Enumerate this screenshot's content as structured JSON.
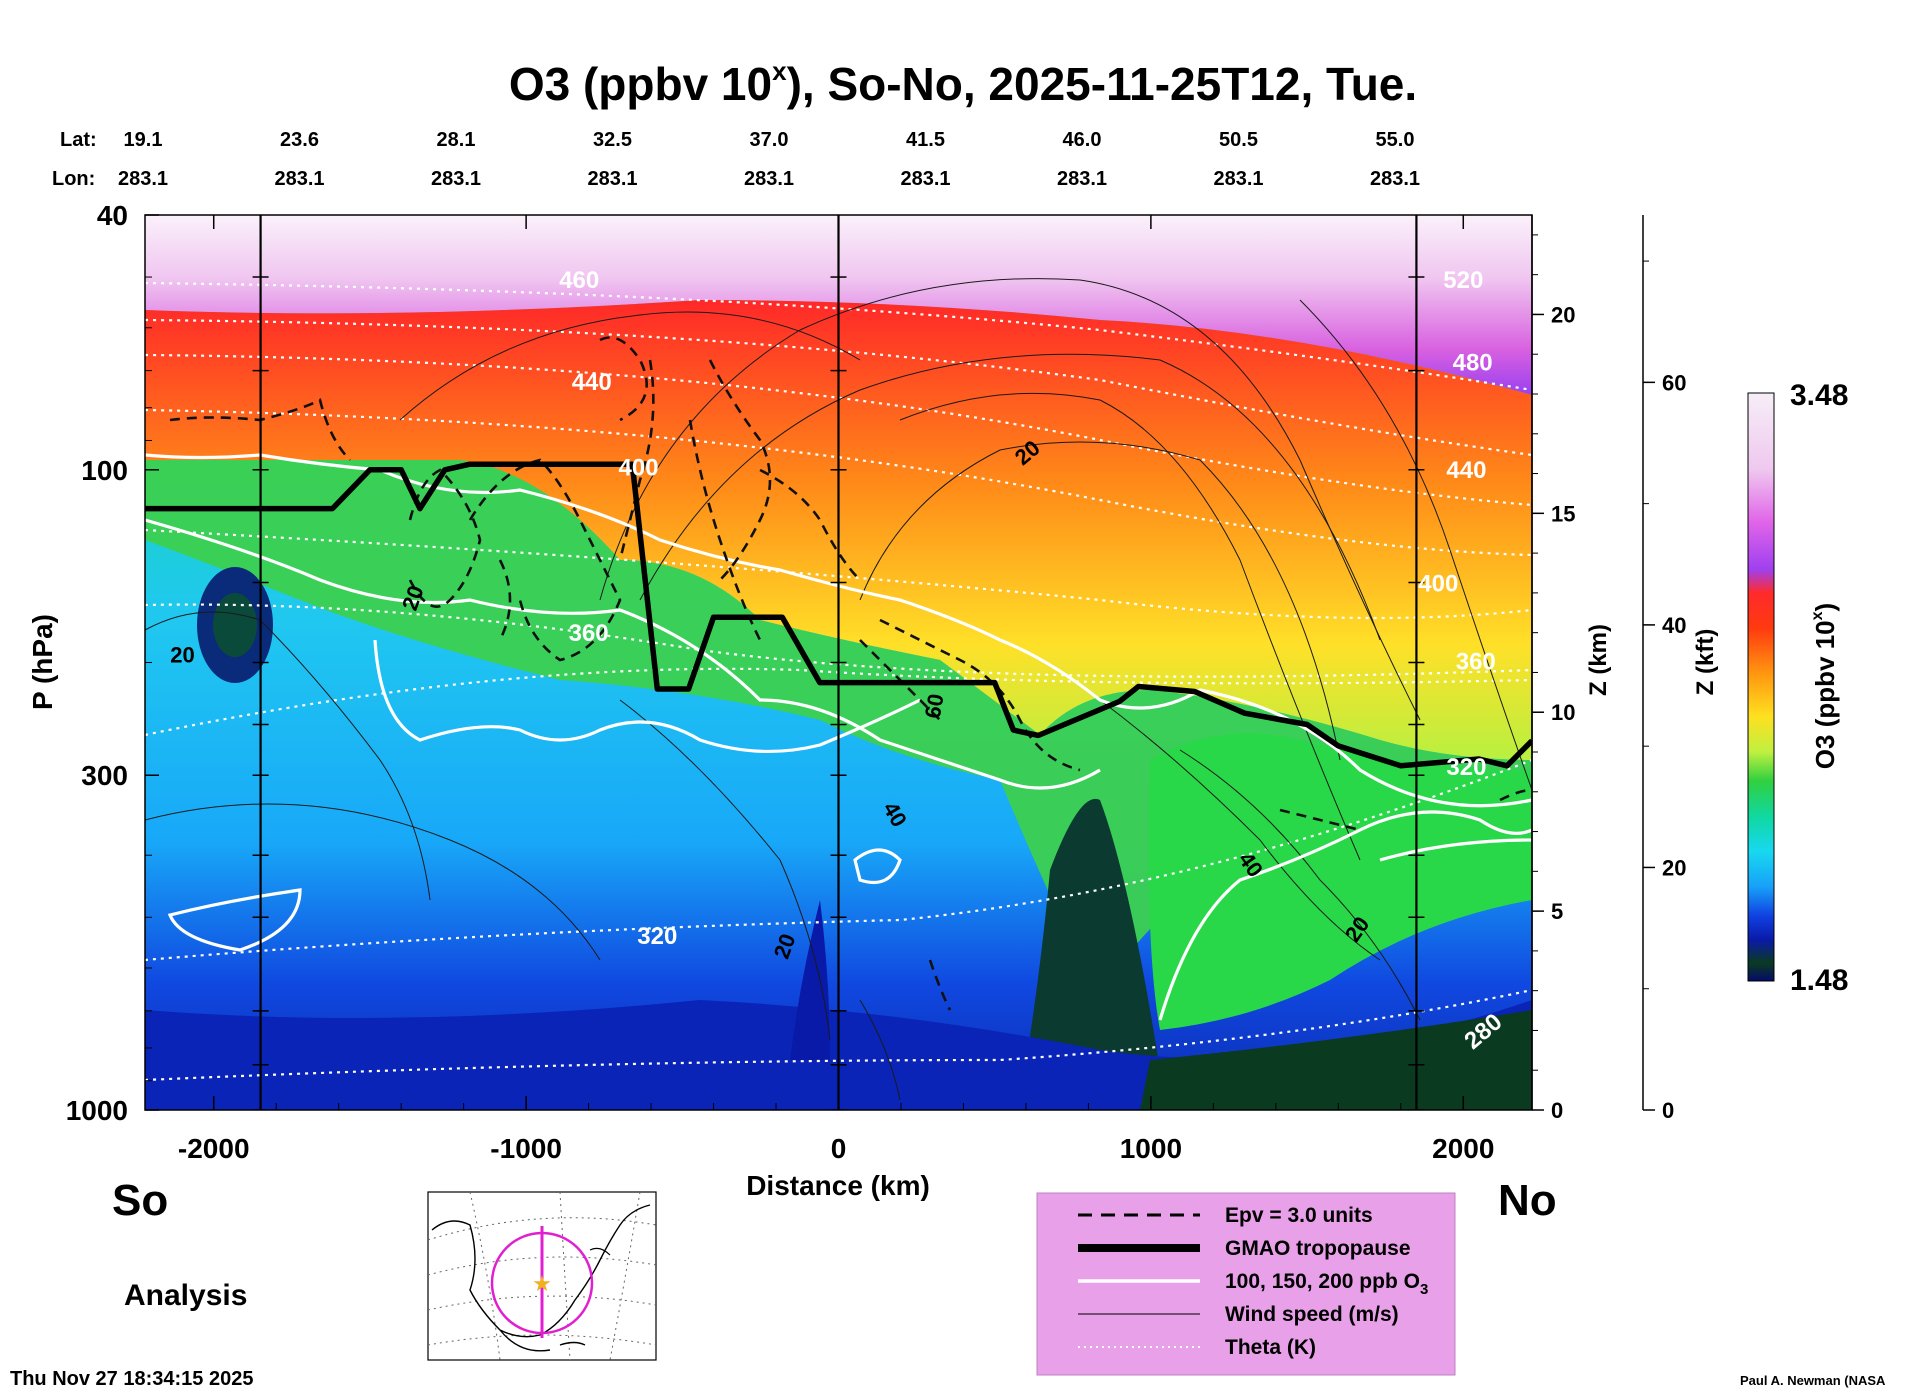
{
  "chart_data": {
    "type": "contour-cross-section",
    "title_main": "O3 (ppbv 10",
    "title_sup": "x",
    "title_rest": "), So-No, 2025-11-25T12, Tue.",
    "lat_label": "Lat:",
    "lon_label": "Lon:",
    "lat_ticks": [
      "19.1",
      "23.6",
      "28.1",
      "32.5",
      "37.0",
      "41.5",
      "46.0",
      "50.5",
      "55.0"
    ],
    "lon_ticks": [
      "283.1",
      "283.1",
      "283.1",
      "283.1",
      "283.1",
      "283.1",
      "283.1",
      "283.1",
      "283.1"
    ],
    "xlabel": "Distance (km)",
    "x_range": [
      -2220,
      2220
    ],
    "x_ticks": [
      -2000,
      -1000,
      0,
      1000,
      2000
    ],
    "x_tick_labels": [
      "-2000",
      "-1000",
      "0",
      "1000",
      "2000"
    ],
    "ylabel": "P (hPa)",
    "y_range": [
      1000,
      40
    ],
    "y_scale": "log",
    "y_tick_labels": [
      "40",
      "100",
      "300",
      "1000"
    ],
    "z_km_label": "Z (km)",
    "z_km_ticks": [
      "0",
      "5",
      "10",
      "15",
      "20"
    ],
    "z_kft_label": "Z (kft)",
    "z_kft_ticks": [
      "0",
      "20",
      "40",
      "60"
    ],
    "left_end_label": "So",
    "right_end_label": "No",
    "analysis_label": "Analysis",
    "colorbar": {
      "label_main": "O3 (ppbv 10",
      "label_sup": "x",
      "label_rest": ")",
      "max": "3.48",
      "min": "1.48"
    },
    "vertical_markers_km": [
      -1850,
      0,
      1850
    ],
    "tropopause": {
      "x": [
        -2220,
        -1620,
        -1500,
        -1400,
        -1340,
        -1260,
        -1180,
        -1000,
        -660,
        -580,
        -480,
        -400,
        -180,
        -60,
        500,
        560,
        640,
        900,
        960,
        1140,
        1300,
        1500,
        1600,
        1800,
        2050,
        2140,
        2220
      ],
      "p": [
        115,
        115,
        100,
        100,
        115,
        100,
        98,
        98,
        98,
        220,
        220,
        170,
        170,
        215,
        215,
        255,
        260,
        230,
        218,
        222,
        240,
        250,
        270,
        290,
        283,
        290,
        265
      ]
    },
    "theta_labels": [
      {
        "text": "460",
        "x": -830,
        "p": 52
      },
      {
        "text": "440",
        "x": -790,
        "p": 75
      },
      {
        "text": "400",
        "x": -640,
        "p": 102
      },
      {
        "text": "360",
        "x": -800,
        "p": 185
      },
      {
        "text": "320",
        "x": -580,
        "p": 550
      },
      {
        "text": "520",
        "x": 2000,
        "p": 52
      },
      {
        "text": "480",
        "x": 2030,
        "p": 70
      },
      {
        "text": "440",
        "x": 2010,
        "p": 103
      },
      {
        "text": "400",
        "x": 1920,
        "p": 155
      },
      {
        "text": "360",
        "x": 2040,
        "p": 205
      },
      {
        "text": "320",
        "x": 2010,
        "p": 300
      },
      {
        "text": "280",
        "x": 2080,
        "p": 770
      }
    ],
    "wind_labels": [
      {
        "text": "20",
        "x": -2100,
        "p": 200,
        "rot": 0
      },
      {
        "text": "20",
        "x": -1340,
        "p": 160,
        "rot": -70
      },
      {
        "text": "20",
        "x": 620,
        "p": 96,
        "rot": -40
      },
      {
        "text": "60",
        "x": 330,
        "p": 235,
        "rot": -80
      },
      {
        "text": "40",
        "x": 160,
        "p": 350,
        "rot": 60
      },
      {
        "text": "20",
        "x": -150,
        "p": 560,
        "rot": -70
      },
      {
        "text": "40",
        "x": 1300,
        "p": 420,
        "rot": 55
      },
      {
        "text": "20",
        "x": 1680,
        "p": 530,
        "rot": -55
      }
    ],
    "legend": [
      {
        "style": "dashed",
        "label": "Epv = 3.0 units"
      },
      {
        "style": "thick",
        "label": "GMAO tropopause"
      },
      {
        "style": "white",
        "label": "100, 150, 200 ppb O"
      },
      {
        "style": "thin",
        "label": "Wind speed (m/s)"
      },
      {
        "style": "dotted",
        "label": "Theta (K)"
      }
    ],
    "legend_o3_sub": "3"
  },
  "footer": {
    "timestamp": "Thu Nov 27 18:34:15 2025",
    "credit": "Paul A. Newman (NASA"
  }
}
